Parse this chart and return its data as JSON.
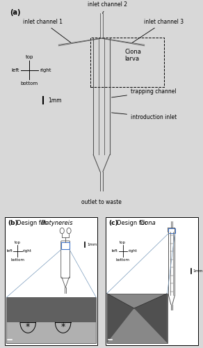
{
  "panel_a_title": "(a)",
  "panel_b_title": "(b)",
  "panel_c_title": "(c)",
  "bg_color": "#d8d8d8",
  "panel_bg": "#ffffff",
  "inlet1": "inlet channel 1",
  "inlet2": "inlet channel 2",
  "inlet3": "inlet channel 3",
  "outlet": "outlet to waste",
  "ciona_larva": "Ciona\nlarva",
  "trapping": "trapping channel",
  "intro_inlet": "introduction inlet",
  "scale_bar": "1mm",
  "design_platy": "Design for ",
  "platy_italic": "Platynereis",
  "design_ciona": "Design for ",
  "ciona_italic": "Ciona",
  "top_label": "top",
  "left_label": "left",
  "right_label": "right",
  "bottom_label": "bottom"
}
